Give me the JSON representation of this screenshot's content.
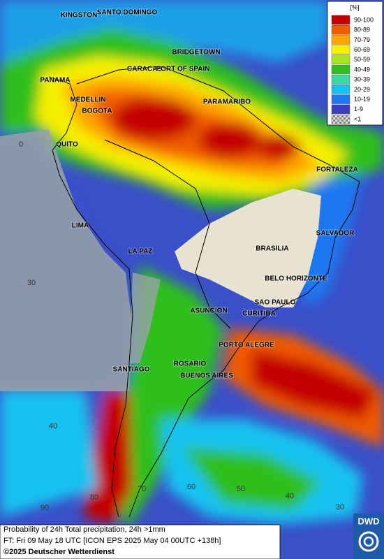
{
  "legend": {
    "title": "[%]",
    "entries": [
      {
        "label": "90-100",
        "color": "#c40000"
      },
      {
        "label": "80-89",
        "color": "#f05a00"
      },
      {
        "label": "70-79",
        "color": "#ffa500"
      },
      {
        "label": "60-69",
        "color": "#f5f000"
      },
      {
        "label": "50-59",
        "color": "#a8e61e"
      },
      {
        "label": "40-49",
        "color": "#2fbf1f"
      },
      {
        "label": "30-39",
        "color": "#3cd7a0"
      },
      {
        "label": "20-29",
        "color": "#14c3f0"
      },
      {
        "label": "10-19",
        "color": "#1e78f0"
      },
      {
        "label": "1-9",
        "color": "#3c3cc0"
      },
      {
        "label": "<1",
        "color": "#b4b4b4"
      }
    ]
  },
  "cities": [
    "KINGSTON",
    "SANTO DOMINGO",
    "BRIDGETOWN",
    "CARACAS",
    "PORT OF SPAIN",
    "PANAMA",
    "MEDELLIN",
    "BOGOTA",
    "PARAMARIBO",
    "QUITO",
    "FORTALEZA",
    "LIMA",
    "SALVADOR",
    "LA PAZ",
    "BRASILIA",
    "BELO HORIZONTE",
    "SAO PAULO",
    "CURITIBA",
    "ASUNCION",
    "PORTO ALEGRE",
    "ROSARIO",
    "BUENOS AIRES",
    "SANTIAGO"
  ],
  "grid_labels": [
    "0",
    "30",
    "40",
    "90",
    "80",
    "70",
    "60",
    "50",
    "40",
    "30"
  ],
  "footer": {
    "line1": "Probability of 24h Total precipitation, 24h >1mm",
    "line2": "FT: Fri 09 May 18 UTC [ICON EPS 2025 May 04 00UTC +138h]",
    "copyright": "©2025 Deutscher Wetterdienst"
  },
  "logo": "DWD"
}
